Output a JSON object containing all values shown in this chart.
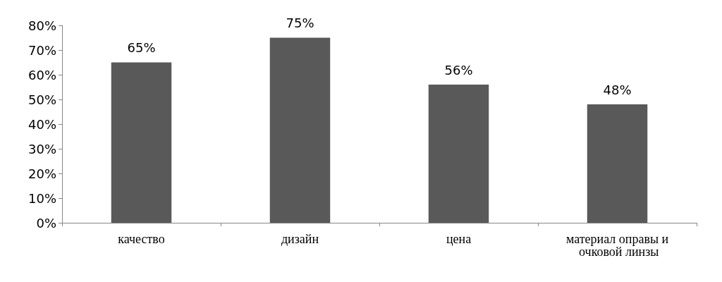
{
  "chart_data": {
    "type": "bar",
    "categories": [
      "качество",
      "дизайн",
      "цена",
      "материал оправы и очковой линзы"
    ],
    "values": [
      65,
      75,
      56,
      48
    ],
    "value_labels": [
      "65%",
      "75%",
      "56%",
      "48%"
    ],
    "color": "#595959",
    "ylim": [
      0,
      80
    ],
    "yticks": [
      {
        "value": 0,
        "label": "0%"
      },
      {
        "value": 10,
        "label": "10%"
      },
      {
        "value": 20,
        "label": "20%"
      },
      {
        "value": 30,
        "label": "30%"
      },
      {
        "value": 40,
        "label": "40%"
      },
      {
        "value": 50,
        "label": "50%"
      },
      {
        "value": 60,
        "label": "60%"
      },
      {
        "value": 70,
        "label": "70%"
      },
      {
        "value": 80,
        "label": "80%"
      }
    ],
    "grid": false
  }
}
